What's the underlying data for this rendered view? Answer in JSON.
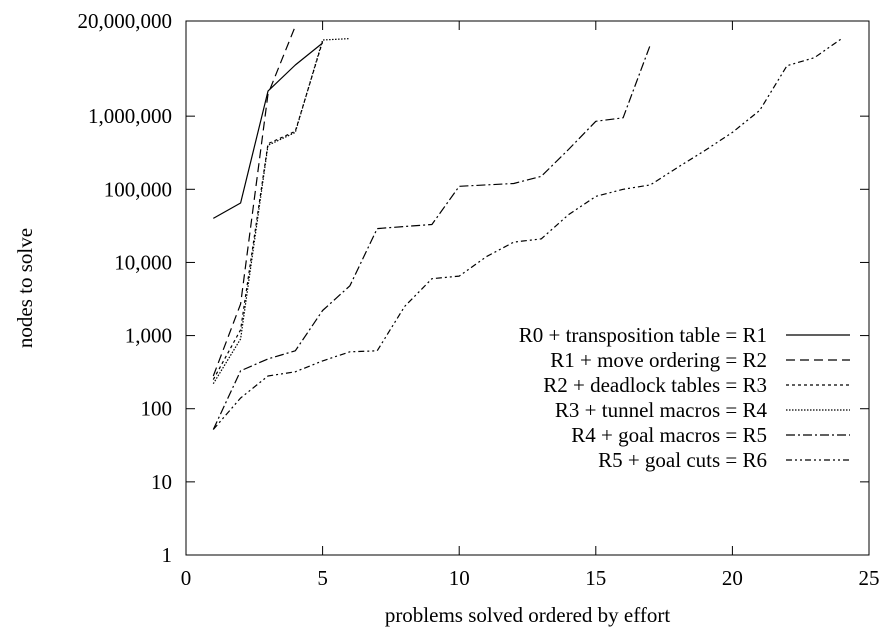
{
  "chart_data": {
    "type": "line",
    "xlabel": "problems solved ordered by effort",
    "ylabel": "nodes to solve",
    "x_ticks": [
      "0",
      "5",
      "10",
      "15",
      "20",
      "25"
    ],
    "y_ticks": [
      "1",
      "10",
      "100",
      "1,000",
      "10,000",
      "100,000",
      "1,000,000",
      "20,000,000"
    ],
    "xlim": [
      0,
      25
    ],
    "ylim": [
      1,
      20000000
    ],
    "y_scale": "log",
    "grid": false,
    "legend_position": "center-right",
    "series": [
      {
        "name": "R0 + transposition table = R1",
        "dash": "",
        "x": [
          1,
          2,
          3,
          4,
          5
        ],
        "y": [
          40000,
          65000,
          2200000,
          5000000,
          10000000
        ]
      },
      {
        "name": "R1 + move ordering = R2",
        "dash": "9,5",
        "x": [
          1,
          2,
          3,
          4
        ],
        "y": [
          280,
          2700,
          2000000,
          17000000
        ]
      },
      {
        "name": "R2 + deadlock tables = R3",
        "dash": "3,3",
        "x": [
          1,
          2,
          3,
          4,
          5
        ],
        "y": [
          250,
          1200,
          420000,
          620000,
          10500000
        ]
      },
      {
        "name": "R3 + tunnel macros = R4",
        "dash": "1.5,1.5",
        "x": [
          1,
          2,
          3,
          4,
          5,
          6
        ],
        "y": [
          220,
          900,
          400000,
          600000,
          11000000,
          11500000
        ]
      },
      {
        "name": "R4 + goal macros = R5",
        "dash": "9,3,2,3",
        "x": [
          1,
          2,
          3,
          4,
          5,
          6,
          7,
          8,
          9,
          10,
          11,
          12,
          13,
          14,
          15,
          16,
          17
        ],
        "y": [
          52,
          330,
          480,
          620,
          2200,
          4800,
          29000,
          31000,
          33000,
          110000,
          115000,
          120000,
          150000,
          350000,
          850000,
          950000,
          9500000
        ]
      },
      {
        "name": "R5 + goal cuts = R6",
        "dash": "6,3,2,3,2,3",
        "x": [
          1,
          2,
          3,
          4,
          5,
          6,
          7,
          8,
          9,
          10,
          11,
          12,
          13,
          14,
          15,
          16,
          17,
          18,
          19,
          20,
          21,
          22,
          23,
          24
        ],
        "y": [
          52,
          140,
          280,
          320,
          450,
          600,
          620,
          2500,
          6000,
          6500,
          12000,
          19000,
          21000,
          45000,
          80000,
          100000,
          115000,
          200000,
          340000,
          600000,
          1200000,
          4900000,
          6300000,
          11500000
        ]
      }
    ]
  }
}
